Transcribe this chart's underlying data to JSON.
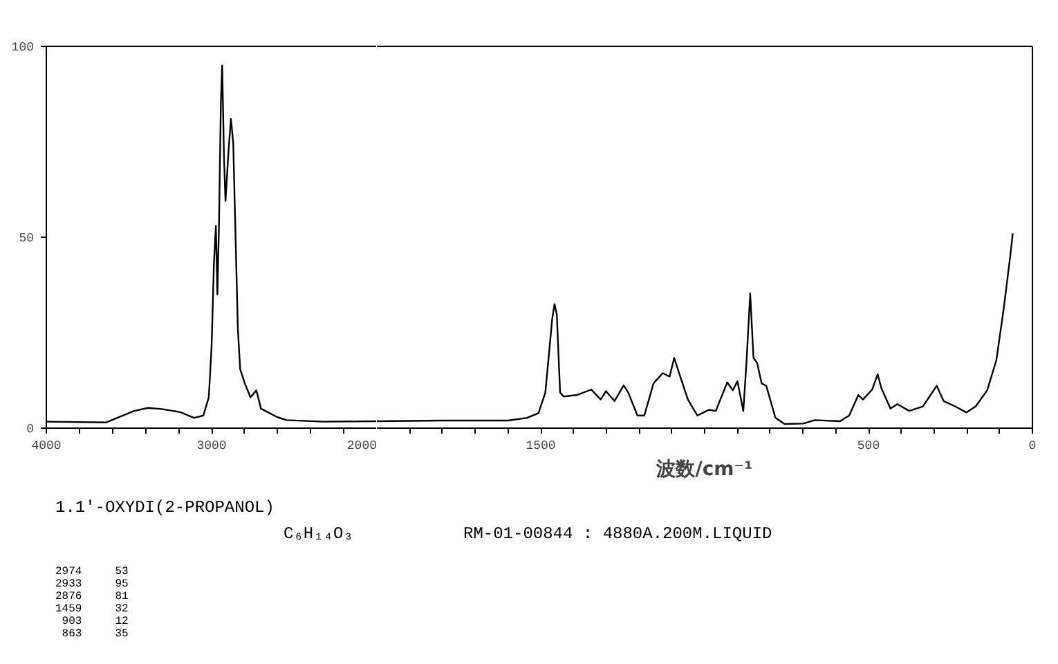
{
  "chart_data": [
    {
      "type": "line",
      "title": "1.1'-OXYDI(2-PROPANOL)",
      "subtitle": "C₆H₁₄O₃",
      "annotations": [
        "RM-01-00844 : 4880A.200M.LIQUID",
        "2974     53",
        "2933     95",
        "2876     81",
        "1459     32",
        " 903     12",
        " 863     35"
      ],
      "xlim": [
        4000,
        2000
      ],
      "ylim": [
        0,
        100
      ],
      "xticks": [
        4000,
        {
          "value": 3800,
          "label": null
        },
        {
          "value": 3600,
          "label": null
        },
        {
          "value": 3400,
          "label": null
        },
        {
          "value": 3200,
          "label": null
        },
        3000,
        {
          "value": 2800,
          "label": null
        },
        {
          "value": 2600,
          "label": null
        },
        {
          "value": 2400,
          "label": null
        },
        {
          "value": 2200,
          "label": null
        },
        2000
      ],
      "yticks": [
        0,
        50,
        100
      ],
      "grid": false,
      "x": [
        4000,
        3637,
        3469,
        3385,
        3302,
        3190,
        3106,
        3050,
        3017,
        3000,
        2986,
        2974,
        2965,
        2955,
        2944,
        2936,
        2925,
        2916,
        2897,
        2883,
        2869,
        2855,
        2841,
        2827,
        2799,
        2765,
        2729,
        2701,
        2603,
        2547,
        2324,
        2000
      ],
      "series": [
        {
          "color": "#000000",
          "values": [
            1.7,
            1.5,
            4.5,
            5.3,
            5.0,
            4.2,
            2.7,
            3.3,
            8.1,
            21.4,
            43,
            53,
            35,
            54,
            85,
            95,
            71,
            59.5,
            73,
            81,
            74.6,
            50,
            26,
            15.4,
            11.7,
            8.1,
            9.9,
            5.1,
            2.9,
            2.1,
            1.7,
            1.8
          ]
        }
      ]
    },
    {
      "type": "line",
      "xlabel": "波数/cm⁻¹",
      "tick_labels": "x",
      "xlim": [
        2000,
        0
      ],
      "ylim": [
        0,
        100
      ],
      "grid": false,
      "xticks": [
        {
          "value": 1900,
          "label": null
        },
        {
          "value": 1800,
          "label": null
        },
        {
          "value": 1700,
          "label": null
        },
        {
          "value": 1600,
          "label": null
        },
        1500,
        {
          "value": 1400,
          "label": null
        },
        {
          "value": 1300,
          "label": null
        },
        {
          "value": 1200,
          "label": null
        },
        {
          "value": 1100,
          "label": null
        },
        {
          "value": 1000,
          "label": null
        },
        {
          "value": 900,
          "label": null
        },
        {
          "value": 800,
          "label": null
        },
        {
          "value": 700,
          "label": null
        },
        {
          "value": 600,
          "label": null
        },
        500,
        {
          "value": 400,
          "label": null
        },
        {
          "value": 300,
          "label": null
        },
        {
          "value": 200,
          "label": null
        },
        {
          "value": 100,
          "label": null
        },
        0
      ],
      "x": [
        2000,
        1800,
        1600,
        1542,
        1507,
        1486,
        1465,
        1458,
        1451,
        1441,
        1430,
        1388,
        1346,
        1317,
        1301,
        1275,
        1247,
        1233,
        1205,
        1184,
        1156,
        1128,
        1107,
        1093,
        1072,
        1051,
        1022,
        987,
        966,
        931,
        914,
        900,
        882,
        872,
        861,
        851,
        840,
        826,
        812,
        784,
        756,
        699,
        664,
        587,
        559,
        531,
        517,
        489,
        472,
        461,
        433,
        412,
        376,
        334,
        306,
        292,
        271,
        236,
        201,
        173,
        138,
        110,
        88,
        67,
        60
      ],
      "series": [
        {
          "color": "#000000",
          "values": [
            1.8,
            2.0,
            2.0,
            2.7,
            3.9,
            9.3,
            28.6,
            32.5,
            29.8,
            9.3,
            8.3,
            8.7,
            10.1,
            7.5,
            9.7,
            7.1,
            11.2,
            9.3,
            3.3,
            3.3,
            11.7,
            14.4,
            13.5,
            18.4,
            12.9,
            7.5,
            3.3,
            4.8,
            4.5,
            12.0,
            9.9,
            12.3,
            4.5,
            17.8,
            35.3,
            18.4,
            17.1,
            11.7,
            11.1,
            2.7,
            1.1,
            1.2,
            2.1,
            1.8,
            3.3,
            8.7,
            7.5,
            10.1,
            14.1,
            10.5,
            5.1,
            6.3,
            4.5,
            5.7,
            9.3,
            11.1,
            7.1,
            5.7,
            4.1,
            5.7,
            9.9,
            17.8,
            31.0,
            45.5,
            51.0
          ]
        }
      ]
    }
  ]
}
